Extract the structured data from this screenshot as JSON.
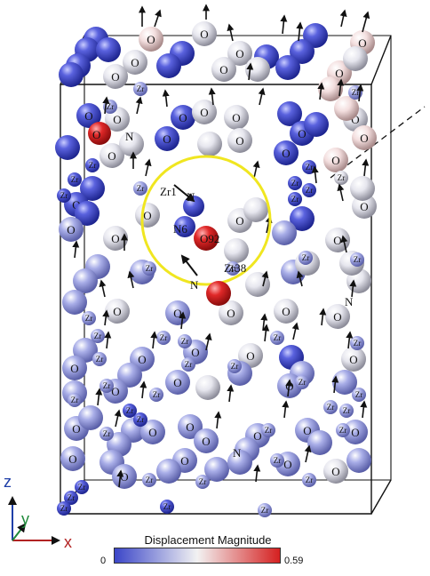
{
  "colors": {
    "blue": "#3b46c8",
    "white": "#f2f2f2",
    "red": "#d52020",
    "highlight": "#f0e620",
    "axis_z": "#1f3fa8",
    "axis_y": "#1f8a3a",
    "axis_x": "#b22222"
  },
  "colorbar": {
    "title": "Displacement Magnitude",
    "min": "0",
    "max": "0.59"
  },
  "axes": {
    "z": "z",
    "y": "y",
    "x": "x"
  },
  "highlight_labels": {
    "zr1": "Zr1",
    "n6": "N6",
    "o92": "O92",
    "zr38": "Zr38"
  },
  "atom_symbols": {
    "oxygen": "O",
    "zirconium": "Zr",
    "nitrogen": "N"
  }
}
